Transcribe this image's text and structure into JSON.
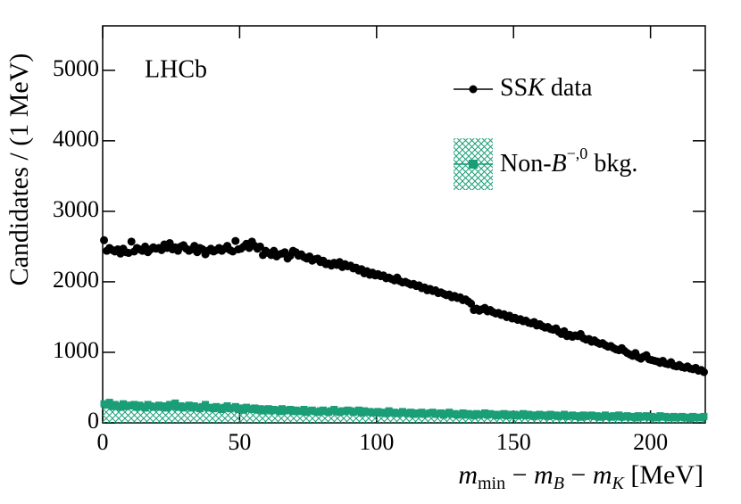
{
  "chart_data": {
    "type": "scatter",
    "annotation": "LHCb",
    "x_label": [
      "m",
      "min",
      " − ",
      "m",
      "B",
      " − ",
      "m",
      "K",
      " [MeV]"
    ],
    "y_label": "Candidates / (1 MeV)",
    "xlim": [
      0,
      220
    ],
    "xticks": [
      0,
      50,
      100,
      150,
      200
    ],
    "ylim": [
      0,
      5630
    ],
    "yticks": [
      0,
      1000,
      2000,
      3000,
      4000,
      5000
    ],
    "x": [
      0.5,
      1.5,
      2.5,
      3.5,
      4.5,
      5.5,
      6.5,
      7.5,
      8.5,
      9.5,
      10.5,
      11.5,
      12.5,
      13.5,
      14.5,
      15.5,
      16.5,
      17.5,
      18.5,
      19.5,
      20.5,
      21.5,
      22.5,
      23.5,
      24.5,
      25.5,
      26.5,
      27.5,
      28.5,
      29.5,
      30.5,
      31.5,
      32.5,
      33.5,
      34.5,
      35.5,
      36.5,
      37.5,
      38.5,
      39.5,
      40.5,
      41.5,
      42.5,
      43.5,
      44.5,
      45.5,
      46.5,
      47.5,
      48.5,
      49.5,
      50.5,
      51.5,
      52.5,
      53.5,
      54.5,
      55.5,
      56.5,
      57.5,
      58.5,
      59.5,
      60.5,
      61.5,
      62.5,
      63.5,
      64.5,
      65.5,
      66.5,
      67.5,
      68.5,
      69.5,
      70.5,
      71.5,
      72.5,
      73.5,
      74.5,
      75.5,
      76.5,
      77.5,
      78.5,
      79.5,
      80.5,
      81.5,
      82.5,
      83.5,
      84.5,
      85.5,
      86.5,
      87.5,
      88.5,
      89.5,
      90.5,
      91.5,
      92.5,
      93.5,
      94.5,
      95.5,
      96.5,
      97.5,
      98.5,
      99.5,
      100.5,
      101.5,
      102.5,
      103.5,
      104.5,
      105.5,
      106.5,
      107.5,
      108.5,
      109.5,
      110.5,
      111.5,
      112.5,
      113.5,
      114.5,
      115.5,
      116.5,
      117.5,
      118.5,
      119.5,
      120.5,
      121.5,
      122.5,
      123.5,
      124.5,
      125.5,
      126.5,
      127.5,
      128.5,
      129.5,
      130.5,
      131.5,
      132.5,
      133.5,
      134.5,
      135.5,
      136.5,
      137.5,
      138.5,
      139.5,
      140.5,
      141.5,
      142.5,
      143.5,
      144.5,
      145.5,
      146.5,
      147.5,
      148.5,
      149.5,
      150.5,
      151.5,
      152.5,
      153.5,
      154.5,
      155.5,
      156.5,
      157.5,
      158.5,
      159.5,
      160.5,
      161.5,
      162.5,
      163.5,
      164.5,
      165.5,
      166.5,
      167.5,
      168.5,
      169.5,
      170.5,
      171.5,
      172.5,
      173.5,
      174.5,
      175.5,
      176.5,
      177.5,
      178.5,
      179.5,
      180.5,
      181.5,
      182.5,
      183.5,
      184.5,
      185.5,
      186.5,
      187.5,
      188.5,
      189.5,
      190.5,
      191.5,
      192.5,
      193.5,
      194.5,
      195.5,
      196.5,
      197.5,
      198.5,
      199.5,
      200.5,
      201.5,
      202.5,
      203.5,
      204.5,
      205.5,
      206.5,
      207.5,
      208.5,
      209.5,
      210.5,
      211.5,
      212.5,
      213.5,
      214.5,
      215.5,
      216.5,
      217.5,
      218.5,
      219.5
    ],
    "series": [
      {
        "name": [
          "SS",
          "K",
          " data"
        ],
        "color": "#000000",
        "marker": "circle",
        "values": [
          2590,
          2440,
          2480,
          2450,
          2430,
          2460,
          2400,
          2470,
          2420,
          2410,
          2570,
          2430,
          2480,
          2460,
          2440,
          2500,
          2420,
          2460,
          2490,
          2470,
          2480,
          2450,
          2530,
          2480,
          2550,
          2460,
          2490,
          2440,
          2500,
          2520,
          2470,
          2440,
          2460,
          2510,
          2420,
          2480,
          2460,
          2390,
          2440,
          2470,
          2430,
          2450,
          2480,
          2440,
          2470,
          2510,
          2450,
          2430,
          2580,
          2460,
          2470,
          2500,
          2540,
          2480,
          2570,
          2510,
          2470,
          2500,
          2380,
          2440,
          2410,
          2380,
          2440,
          2360,
          2390,
          2400,
          2420,
          2330,
          2370,
          2440,
          2420,
          2370,
          2390,
          2350,
          2330,
          2360,
          2300,
          2320,
          2330,
          2280,
          2300,
          2250,
          2260,
          2230,
          2270,
          2240,
          2280,
          2210,
          2250,
          2220,
          2230,
          2190,
          2200,
          2160,
          2180,
          2120,
          2150,
          2100,
          2130,
          2090,
          2110,
          2080,
          2090,
          2050,
          2060,
          2040,
          2020,
          2060,
          2010,
          1990,
          2000,
          1980,
          1960,
          1970,
          1940,
          1950,
          1910,
          1920,
          1880,
          1900,
          1870,
          1880,
          1840,
          1850,
          1830,
          1810,
          1820,
          1780,
          1800,
          1770,
          1780,
          1740,
          1750,
          1720,
          1690,
          1600,
          1620,
          1590,
          1610,
          1630,
          1580,
          1600,
          1570,
          1550,
          1560,
          1530,
          1540,
          1500,
          1520,
          1480,
          1490,
          1460,
          1470,
          1440,
          1450,
          1420,
          1410,
          1430,
          1380,
          1400,
          1370,
          1350,
          1360,
          1330,
          1320,
          1340,
          1290,
          1260,
          1300,
          1230,
          1250,
          1220,
          1240,
          1230,
          1260,
          1200,
          1180,
          1190,
          1150,
          1170,
          1140,
          1120,
          1130,
          1100,
          1080,
          1090,
          1060,
          1040,
          1030,
          1060,
          1020,
          990,
          970,
          950,
          990,
          930,
          910,
          940,
          960,
          900,
          890,
          880,
          870,
          850,
          880,
          840,
          830,
          860,
          810,
          800,
          820,
          790,
          780,
          800,
          770,
          760,
          780,
          740,
          750,
          720
        ]
      },
      {
        "name": [
          "Non-",
          "B",
          "−,0",
          " bkg."
        ],
        "color": "#1a9e77",
        "marker": "square",
        "values": [
          270,
          250,
          290,
          230,
          260,
          240,
          220,
          270,
          230,
          250,
          240,
          260,
          220,
          250,
          230,
          210,
          260,
          240,
          220,
          230,
          250,
          220,
          240,
          210,
          260,
          230,
          280,
          220,
          240,
          210,
          230,
          250,
          210,
          240,
          220,
          200,
          230,
          260,
          210,
          220,
          200,
          230,
          210,
          190,
          220,
          240,
          200,
          210,
          230,
          190,
          210,
          180,
          220,
          200,
          190,
          210,
          180,
          200,
          170,
          190,
          200,
          170,
          190,
          180,
          160,
          200,
          170,
          180,
          190,
          160,
          180,
          170,
          160,
          190,
          150,
          170,
          180,
          160,
          150,
          170,
          180,
          160,
          150,
          170,
          190,
          160,
          150,
          170,
          160,
          180,
          170,
          150,
          160,
          180,
          140,
          170,
          150,
          160,
          140,
          150,
          160,
          140,
          150,
          130,
          170,
          140,
          150,
          130,
          140,
          160,
          140,
          130,
          150,
          120,
          140,
          130,
          150,
          120,
          130,
          140,
          150,
          120,
          130,
          140,
          110,
          130,
          150,
          120,
          130,
          110,
          120,
          140,
          110,
          130,
          120,
          100,
          130,
          110,
          120,
          140,
          110,
          130,
          120,
          100,
          120,
          110,
          130,
          100,
          120,
          110,
          120,
          100,
          110,
          130,
          100,
          120,
          110,
          90,
          110,
          120,
          100,
          110,
          90,
          120,
          100,
          110,
          90,
          100,
          120,
          90,
          100,
          110,
          90,
          100,
          80,
          110,
          90,
          100,
          110,
          90,
          100,
          80,
          90,
          110,
          90,
          80,
          100,
          90,
          110,
          80,
          90,
          100,
          80,
          90,
          70,
          100,
          80,
          90,
          100,
          80,
          90,
          70,
          80,
          100,
          80,
          90,
          70,
          80,
          90,
          70,
          80,
          90,
          70,
          80,
          60,
          90,
          70,
          80,
          70,
          90
        ]
      }
    ]
  }
}
